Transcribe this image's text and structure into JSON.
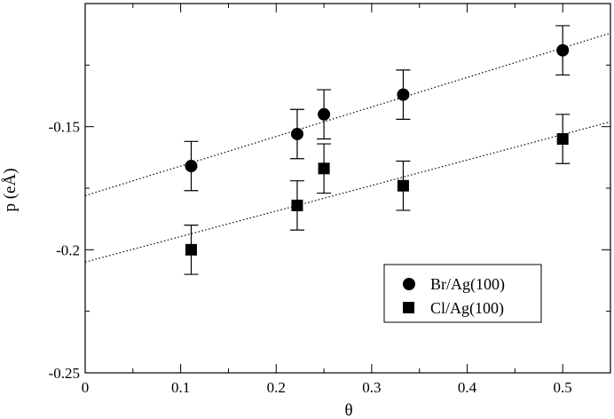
{
  "chart_data": {
    "type": "scatter",
    "xlabel": "θ",
    "ylabel": "p (eÅ)",
    "xlim": [
      0,
      0.55
    ],
    "ylim": [
      -0.25,
      -0.1
    ],
    "grid": false,
    "legend_position": "bottom-right",
    "x_ticks": [
      0,
      0.1,
      0.2,
      0.3,
      0.4,
      0.5
    ],
    "x_tick_labels": [
      "0",
      "0.1",
      "0.2",
      "0.3",
      "0.4",
      "0.5"
    ],
    "y_ticks": [
      -0.25,
      -0.2,
      -0.15
    ],
    "y_tick_labels": [
      "-0.25",
      "-0.2",
      "-0.15"
    ],
    "series": [
      {
        "name": "Br/Ag(100)",
        "marker": "circle",
        "x": [
          0.111,
          0.222,
          0.25,
          0.333,
          0.5
        ],
        "y": [
          -0.166,
          -0.153,
          -0.145,
          -0.137,
          -0.119
        ],
        "yerr": [
          0.01,
          0.01,
          0.01,
          0.01,
          0.01
        ],
        "fit": {
          "x": [
            0,
            0.55
          ],
          "y": [
            -0.178,
            -0.112
          ]
        }
      },
      {
        "name": "Cl/Ag(100)",
        "marker": "square",
        "x": [
          0.111,
          0.222,
          0.25,
          0.333,
          0.5
        ],
        "y": [
          -0.2,
          -0.182,
          -0.167,
          -0.174,
          -0.155
        ],
        "yerr": [
          0.01,
          0.01,
          0.01,
          0.01,
          0.01
        ],
        "fit": {
          "x": [
            0,
            0.55
          ],
          "y": [
            -0.205,
            -0.148
          ]
        }
      }
    ]
  }
}
